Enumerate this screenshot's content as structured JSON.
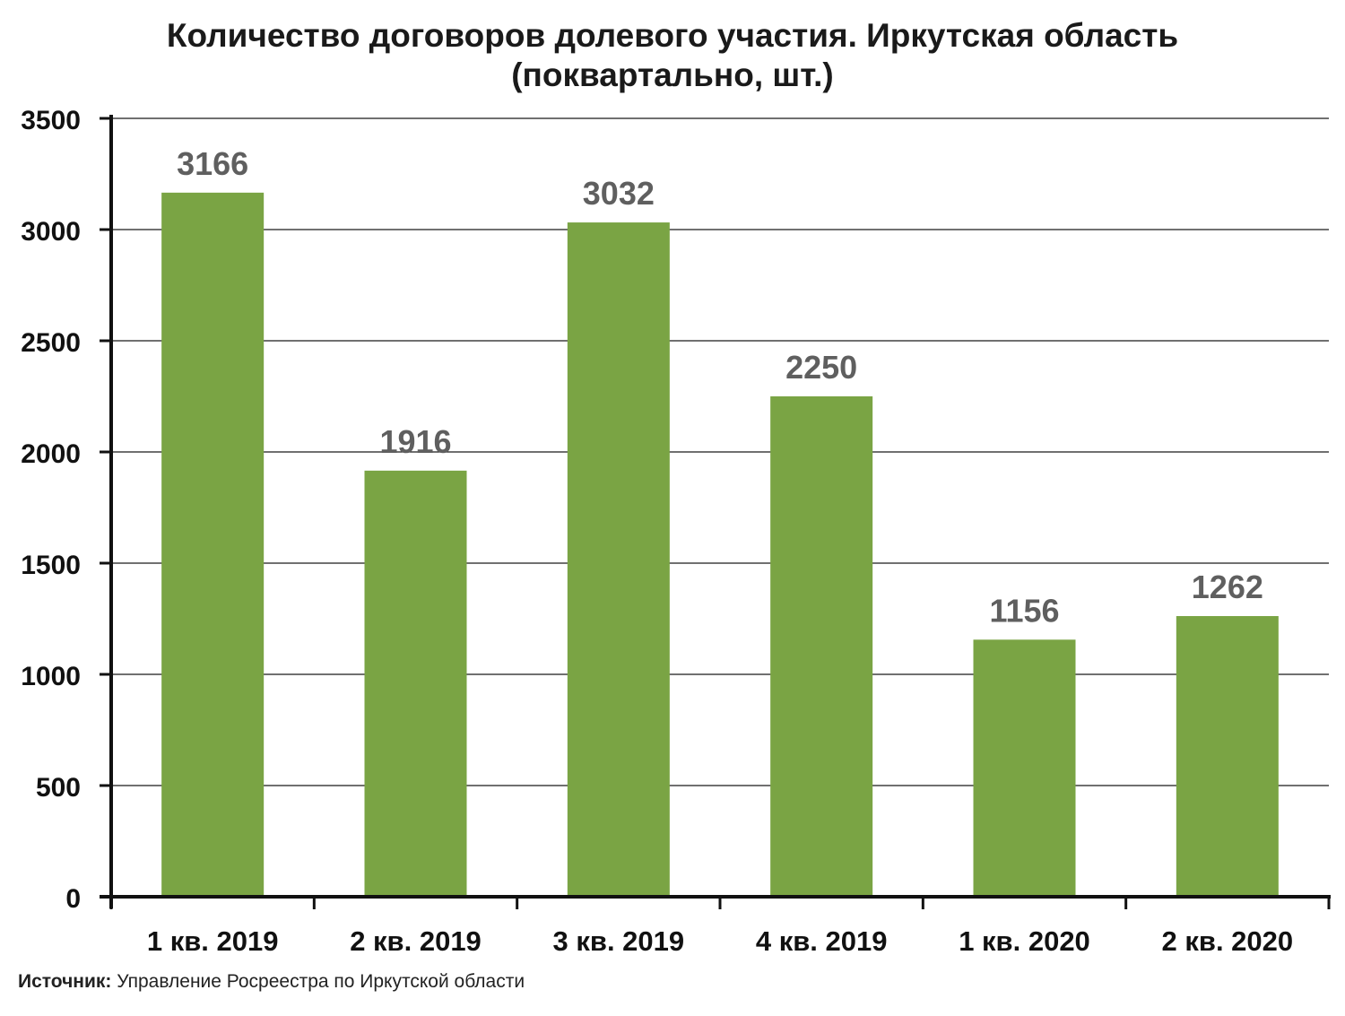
{
  "chart_data": {
    "type": "bar",
    "title_lines": [
      "Количество договоров долевого участия. Иркутская область",
      "(поквартально, шт.)"
    ],
    "categories": [
      "1 кв. 2019",
      "2 кв. 2019",
      "3 кв. 2019",
      "4 кв. 2019",
      "1 кв. 2020",
      "2 кв. 2020"
    ],
    "values": [
      3166,
      1916,
      3032,
      2250,
      1156,
      1262
    ],
    "ylim": [
      0,
      3500
    ],
    "yticks": [
      0,
      500,
      1000,
      1500,
      2000,
      2500,
      3000,
      3500
    ],
    "grid": true,
    "legend": "none",
    "bar_color": "#7aa444",
    "label_color": "#5f5f5f"
  },
  "source": {
    "label": "Источник:",
    "text": " Управление Росреестра по Иркутской области"
  }
}
